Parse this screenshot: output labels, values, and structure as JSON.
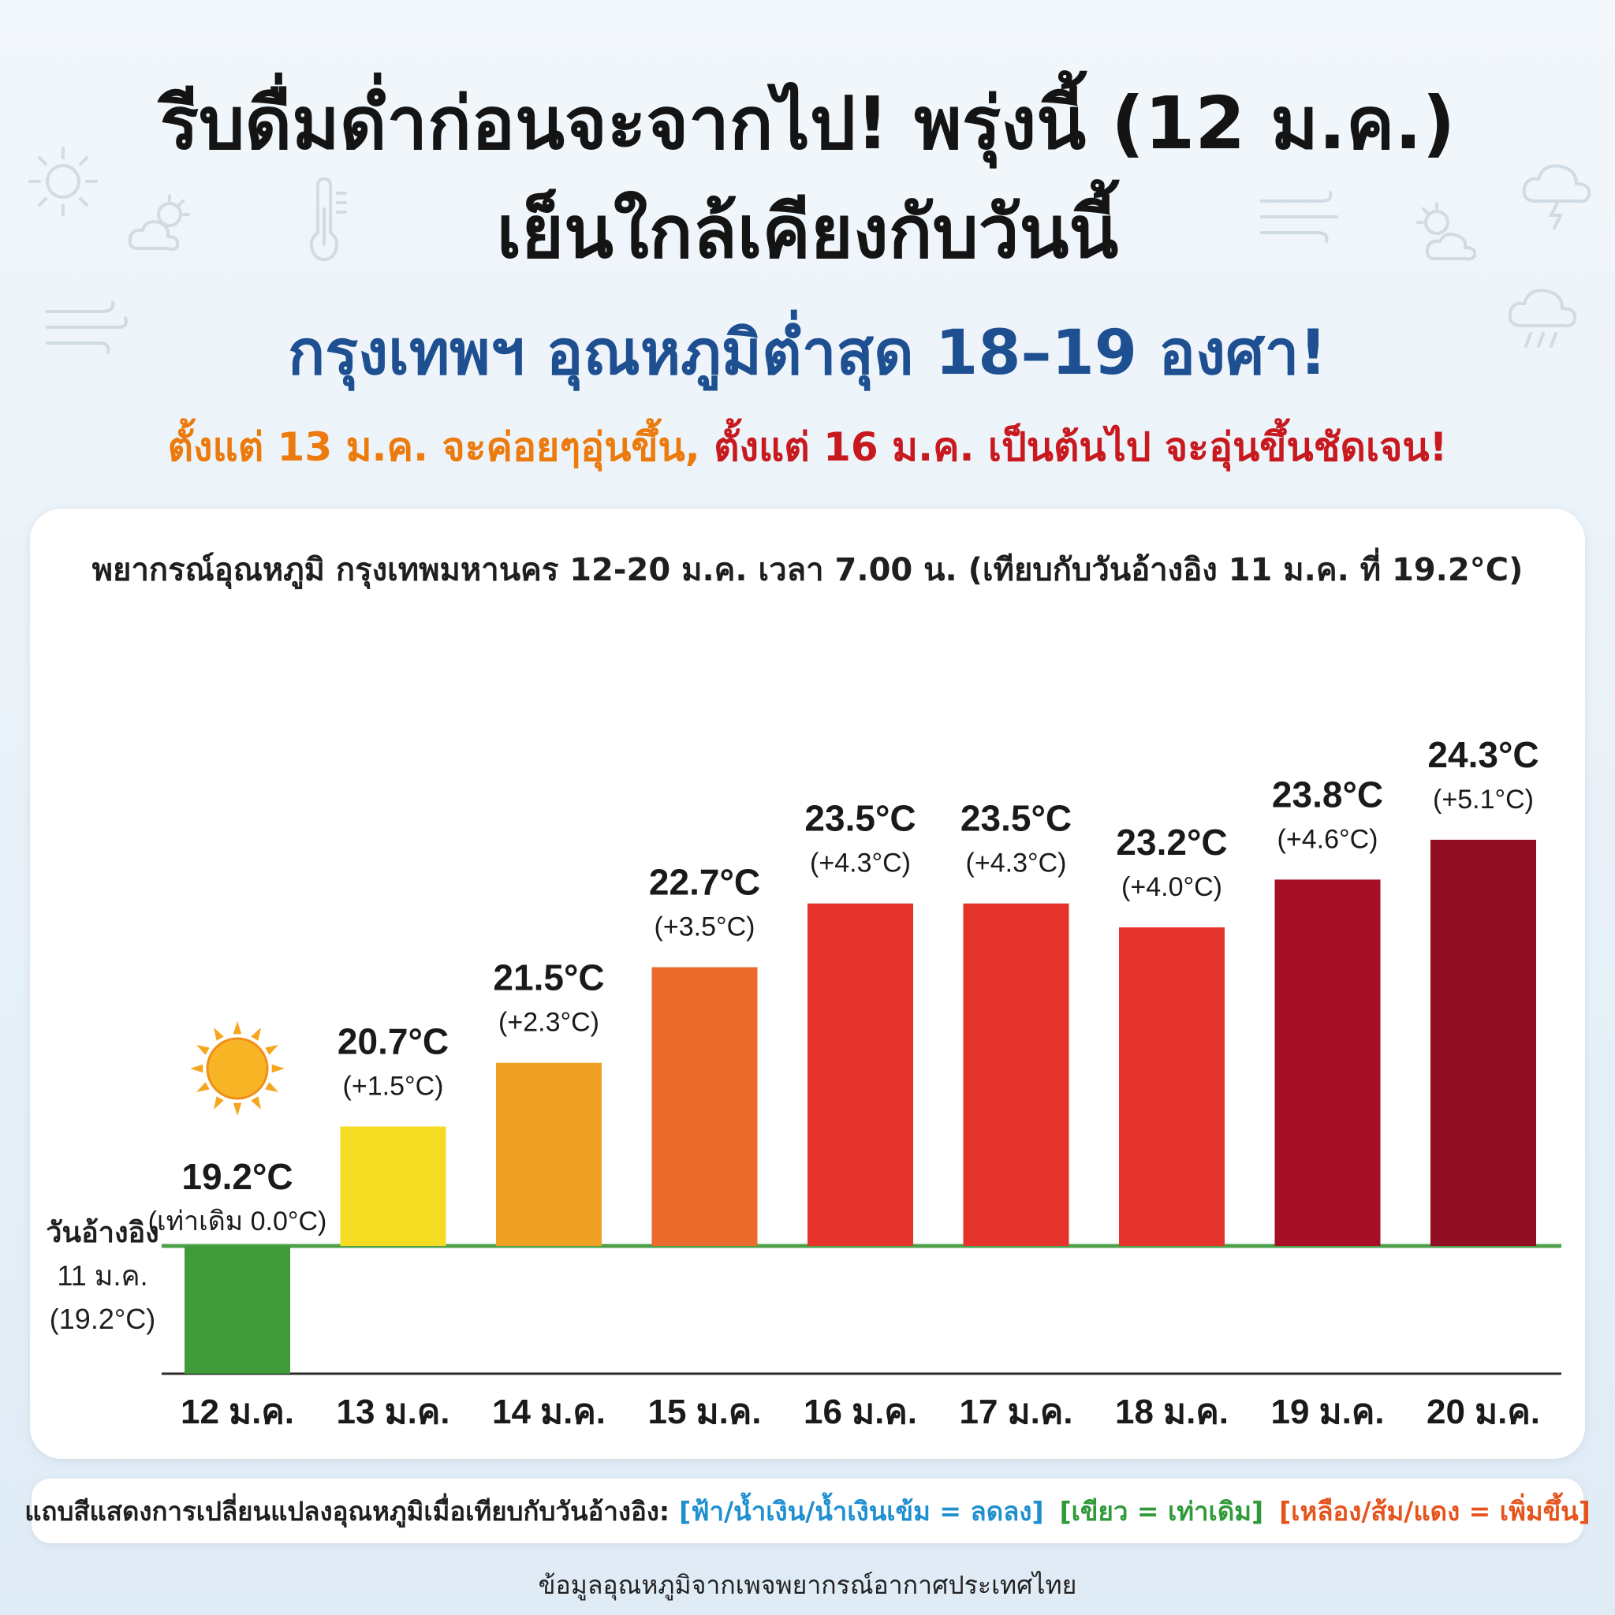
{
  "header": {
    "line1": "รีบดื่มด่ำก่อนจะจากไป! พรุ่งนี้ (12 ม.ค.)",
    "line2": "เย็นใกล้เคียงกับวันนี้",
    "line3": "กรุงเทพฯ อุณหภูมิต่ำสุด 18–19 องศา!",
    "sub_part1": "ตั้งแต่ 13 ม.ค. จะค่อยๆอุ่นขึ้น,",
    "sub_part2": "ตั้งแต่ 16 ม.ค. เป็นต้นไป จะอุ่นขึ้นชัดเจน!"
  },
  "background_icons": [
    "sun-icon",
    "partly-cloudy-icon",
    "thermometer-icon",
    "wind-icon",
    "storm-cloud-icon",
    "partly-cloudy-icon",
    "wind-icon",
    "rain-cloud-icon"
  ],
  "chart_data": {
    "type": "bar",
    "title": "พยากรณ์อุณหภูมิ กรุงเทพมหานคร 12-20 ม.ค. เวลา 7.00 น. (เทียบกับวันอ้างอิง 11 ม.ค. ที่ 19.2°C)",
    "categories": [
      "12 ม.ค.",
      "13 ม.ค.",
      "14 ม.ค.",
      "15 ม.ค.",
      "16 ม.ค.",
      "17 ม.ค.",
      "18 ม.ค.",
      "19 ม.ค.",
      "20 ม.ค."
    ],
    "values": [
      19.2,
      20.7,
      21.5,
      22.7,
      23.5,
      23.5,
      23.2,
      23.8,
      24.3
    ],
    "value_labels": [
      "19.2°C",
      "20.7°C",
      "21.5°C",
      "22.7°C",
      "23.5°C",
      "23.5°C",
      "23.2°C",
      "23.8°C",
      "24.3°C"
    ],
    "change_labels": [
      "(เท่าเดิม 0.0°C)",
      "(+1.5°C)",
      "(+2.3°C)",
      "(+3.5°C)",
      "(+4.3°C)",
      "(+4.3°C)",
      "(+4.0°C)",
      "(+4.6°C)",
      "(+5.1°C)"
    ],
    "colors": [
      "#3f9b3a",
      "#f5dc22",
      "#f0a124",
      "#ec6a2c",
      "#e3332a",
      "#e3332a",
      "#e3332a",
      "#a51026",
      "#8f0e22"
    ],
    "reference": {
      "value": 19.2,
      "label_lines": [
        "วันอ้างอิง",
        "11 ม.ค.",
        "(19.2°C)"
      ],
      "line_color": "#4ea14a"
    },
    "first_bar_icon": "sun-icon",
    "xlabel": "",
    "ylabel": "",
    "grid": false
  },
  "legend": {
    "label": "แถบสีแสดงการเปลี่ยนแปลงอุณหภูมิเมื่อเทียบกับวันอ้างอิง:",
    "cool": "[ฟ้า/น้ำเงิน/น้ำเงินเข้ม = ลดลง]",
    "same": "[เขียว = เท่าเดิม]",
    "warm": "[เหลือง/ส้ม/แดง = เพิ่มขึ้น]"
  },
  "footer": {
    "source": "ข้อมูลอุณหภูมิจากเพจพยากรณ์อากาศประเทศไทย"
  }
}
